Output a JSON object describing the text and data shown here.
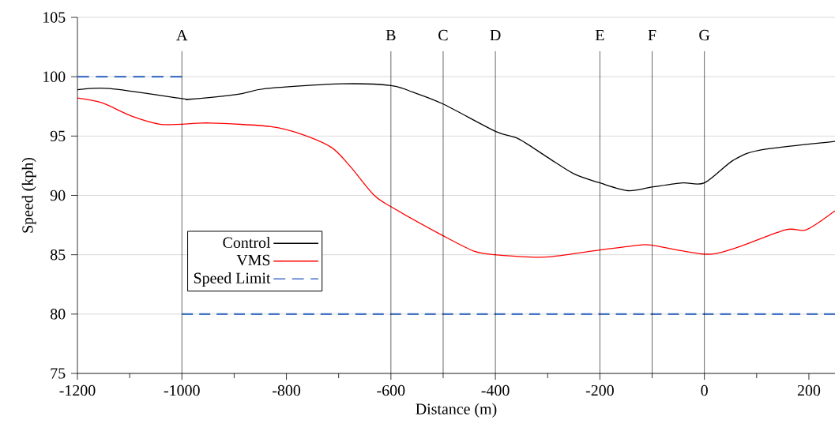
{
  "chart_data": {
    "type": "line",
    "xlabel": "Distance (m)",
    "ylabel": "Speed (kph)",
    "xlim": [
      -1200,
      250
    ],
    "ylim": [
      75,
      105
    ],
    "xticks": [
      -1200,
      -1000,
      -800,
      -600,
      -400,
      -200,
      0,
      200
    ],
    "yticks": [
      75,
      80,
      85,
      90,
      95,
      100,
      105
    ],
    "grid": "y",
    "legend": "bottom left",
    "marker": "none",
    "series": [
      {
        "name": "Control",
        "color": "#000000",
        "line_style": "solid",
        "x": [
          -1200,
          -1138,
          -1000,
          -986,
          -895,
          -839,
          -694,
          -600,
          -558,
          -500,
          -400,
          -355,
          -300,
          -249,
          -200,
          -146,
          -100,
          -42,
          0,
          55,
          105,
          250
        ],
        "values": [
          98.9,
          99.0,
          98.15,
          98.1,
          98.5,
          99.0,
          99.4,
          99.25,
          98.7,
          97.7,
          95.4,
          94.75,
          93.2,
          91.8,
          91.05,
          90.4,
          90.7,
          91.05,
          91.05,
          92.95,
          93.8,
          94.55
        ]
      },
      {
        "name": "VMS",
        "color": "#ff0000",
        "line_style": "solid",
        "x": [
          -1200,
          -1153,
          -1097,
          -1042,
          -1000,
          -945,
          -830,
          -774,
          -714,
          -679,
          -633,
          -600,
          -500,
          -441,
          -400,
          -305,
          -200,
          -127,
          -100,
          0,
          55,
          155,
          195,
          250
        ],
        "values": [
          98.2,
          97.8,
          96.7,
          96.0,
          96.0,
          96.1,
          95.8,
          95.2,
          94.05,
          92.5,
          90.05,
          89.05,
          86.6,
          85.3,
          85.0,
          84.8,
          85.4,
          85.8,
          85.8,
          85.05,
          85.5,
          87.1,
          87.1,
          88.7
        ]
      },
      {
        "name": "Speed Limit",
        "color": "#4472c4",
        "line_style": "dashed",
        "x": [
          -1200,
          -1000
        ],
        "values": [
          100,
          100
        ]
      },
      {
        "color": "#4472c4",
        "line_style": "dashed",
        "x": [
          -1000,
          250
        ],
        "values": [
          80,
          80
        ]
      }
    ],
    "ref_lines": [
      {
        "axis": "x",
        "value": -1000,
        "label": "A",
        "color": "#000000"
      },
      {
        "axis": "x",
        "value": -600,
        "label": "B",
        "color": "#000000"
      },
      {
        "axis": "x",
        "value": -500,
        "label": "C",
        "color": "#000000"
      },
      {
        "axis": "x",
        "value": -400,
        "label": "D",
        "color": "#000000"
      },
      {
        "axis": "x",
        "value": -200,
        "label": "E",
        "color": "#000000"
      },
      {
        "axis": "x",
        "value": -100,
        "label": "F",
        "color": "#000000"
      },
      {
        "axis": "x",
        "value": 0,
        "label": "G",
        "color": "#000000"
      }
    ]
  }
}
